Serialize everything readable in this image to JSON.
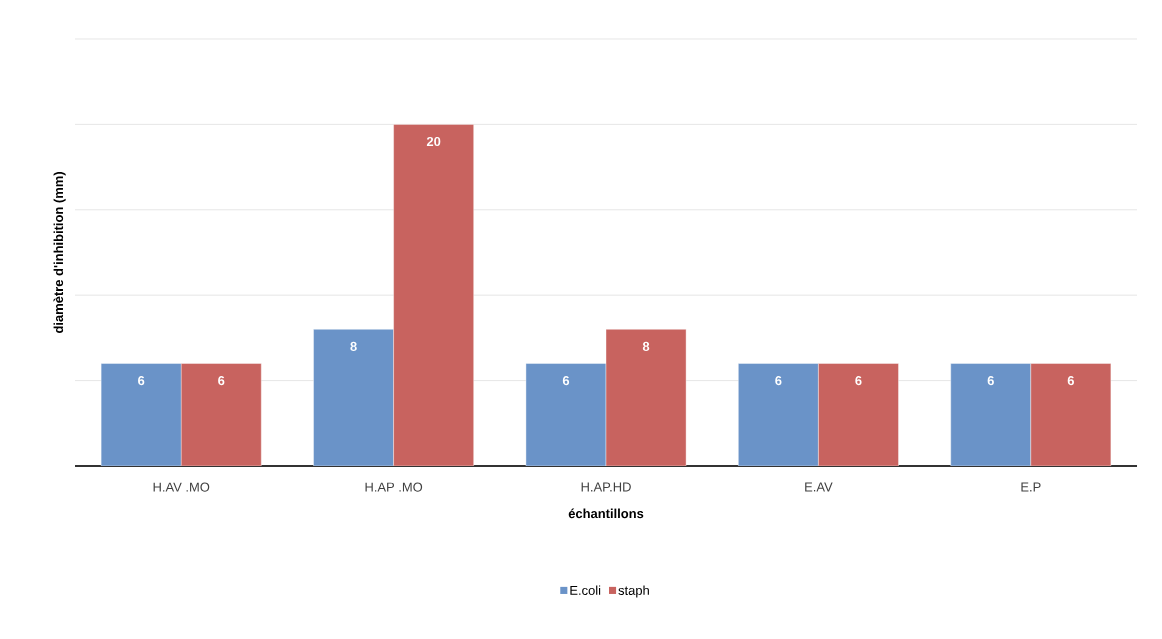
{
  "chart_data": {
    "type": "bar",
    "xlabel": "échantillons",
    "ylabel": "diamètre d'inhibition (mm)",
    "categories": [
      "H.AV .MO",
      "H.AP .MO",
      "H.AP.HD",
      "E.AV",
      "E.P"
    ],
    "series": [
      {
        "name": "E.coli",
        "color": "#6a93c8",
        "values": [
          6,
          8,
          6,
          6,
          6
        ]
      },
      {
        "name": "staph",
        "color": "#c8635f",
        "values": [
          6,
          20,
          8,
          6,
          6
        ]
      }
    ],
    "ylim": [
      0,
      25
    ],
    "yticks": [
      {
        "value": 0,
        "label": null
      },
      {
        "value": 5,
        "label": null
      },
      {
        "value": 10,
        "label": null
      },
      {
        "value": 15,
        "label": null
      },
      {
        "value": 20,
        "label": null
      },
      {
        "value": 25,
        "label": null
      }
    ],
    "tick_labels": "x",
    "grid": "y",
    "legend": "bottom",
    "data_labels": true
  }
}
